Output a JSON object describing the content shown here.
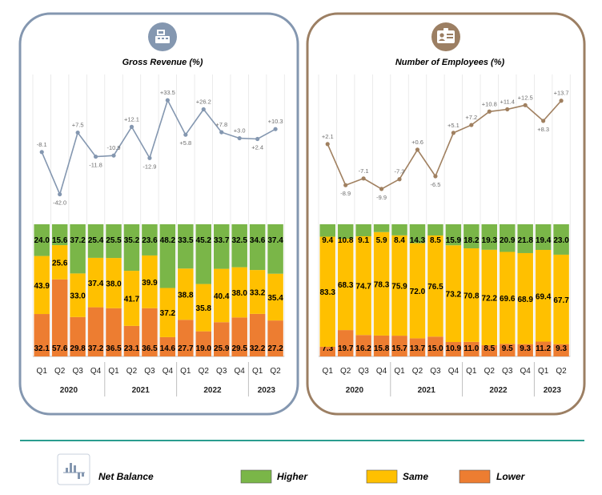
{
  "colors": {
    "higher": "#7ab648",
    "same": "#ffc000",
    "lower": "#ed7d31",
    "revenue_frame": "#8497b0",
    "revenue_line": "#8497b0",
    "employees_frame": "#9c7f63",
    "employees_line": "#a08060",
    "divider": "#2a9d8f"
  },
  "legend": {
    "net_balance": "Net Balance",
    "higher": "Higher",
    "same": "Same",
    "lower": "Lower"
  },
  "chart_data": [
    {
      "type": "bar",
      "stacked": true,
      "title": "Gross Revenue (%)",
      "icon": "cash-register-icon",
      "categories": [
        "Q1",
        "Q2",
        "Q3",
        "Q4",
        "Q1",
        "Q2",
        "Q3",
        "Q4",
        "Q1",
        "Q2",
        "Q3",
        "Q4",
        "Q1",
        "Q2"
      ],
      "years": [
        {
          "label": "2020",
          "start": 0,
          "count": 4
        },
        {
          "label": "2021",
          "start": 4,
          "count": 4
        },
        {
          "label": "2022",
          "start": 8,
          "count": 4
        },
        {
          "label": "2023",
          "start": 12,
          "count": 2
        }
      ],
      "series": [
        {
          "name": "Lower",
          "values": [
            32.1,
            57.6,
            29.8,
            37.2,
            36.5,
            23.1,
            36.5,
            14.6,
            27.7,
            19.0,
            25.9,
            29.5,
            32.2,
            27.2
          ]
        },
        {
          "name": "Same",
          "values": [
            43.9,
            25.6,
            33.0,
            37.4,
            38.0,
            41.7,
            39.9,
            37.2,
            38.8,
            35.8,
            40.4,
            38.0,
            33.2,
            35.4
          ]
        },
        {
          "name": "Higher",
          "values": [
            24.0,
            15.6,
            37.2,
            25.4,
            25.5,
            35.2,
            23.6,
            48.2,
            33.5,
            45.2,
            33.7,
            32.5,
            34.6,
            37.4
          ]
        }
      ],
      "net_balance": {
        "name": "Net Balance",
        "values": [
          -8.1,
          -42.0,
          7.5,
          -11.8,
          -10.9,
          12.1,
          -12.9,
          33.5,
          5.8,
          26.2,
          7.8,
          3.0,
          2.4,
          10.3
        ],
        "labels": [
          "-8.1",
          "-42.0",
          "+7.5",
          "-11.8",
          "-10.9",
          "+12.1",
          "-12.9",
          "+33.5",
          "+5.8",
          "+26.2",
          "+7.8",
          "+3.0",
          "+2.4",
          "+10.3"
        ],
        "ylim": [
          -50,
          40
        ]
      }
    },
    {
      "type": "bar",
      "stacked": true,
      "title": "Number of Employees (%)",
      "icon": "id-badge-icon",
      "categories": [
        "Q1",
        "Q2",
        "Q3",
        "Q4",
        "Q1",
        "Q2",
        "Q3",
        "Q4",
        "Q1",
        "Q2",
        "Q3",
        "Q4",
        "Q1",
        "Q2"
      ],
      "years": [
        {
          "label": "2020",
          "start": 0,
          "count": 4
        },
        {
          "label": "2021",
          "start": 4,
          "count": 4
        },
        {
          "label": "2022",
          "start": 8,
          "count": 4
        },
        {
          "label": "2023",
          "start": 12,
          "count": 2
        }
      ],
      "series": [
        {
          "name": "Lower",
          "values": [
            7.3,
            19.7,
            16.2,
            15.8,
            15.7,
            13.7,
            15.0,
            10.9,
            11.0,
            8.5,
            9.5,
            9.3,
            11.2,
            9.3
          ]
        },
        {
          "name": "Same",
          "values": [
            83.3,
            68.3,
            74.7,
            78.3,
            75.9,
            72.0,
            76.5,
            73.2,
            70.8,
            72.2,
            69.6,
            68.9,
            69.4,
            67.7
          ]
        },
        {
          "name": "Higher",
          "values": [
            9.4,
            10.8,
            9.1,
            5.9,
            8.4,
            14.3,
            8.5,
            15.9,
            18.2,
            19.3,
            20.9,
            21.8,
            19.4,
            23.0
          ]
        }
      ],
      "net_balance": {
        "name": "Net Balance",
        "values": [
          2.1,
          -8.9,
          -7.1,
          -9.9,
          -7.3,
          0.6,
          -6.5,
          5.1,
          7.2,
          10.8,
          11.4,
          12.5,
          8.3,
          13.7
        ],
        "labels": [
          "+2.1",
          "-8.9",
          "-7.1",
          "-9.9",
          "-7.3",
          "+0.6",
          "-6.5",
          "+5.1",
          "+7.2",
          "+10.8",
          "+11.4",
          "+12.5",
          "+8.3",
          "+13.7"
        ],
        "ylim": [
          -14,
          16
        ]
      }
    }
  ]
}
